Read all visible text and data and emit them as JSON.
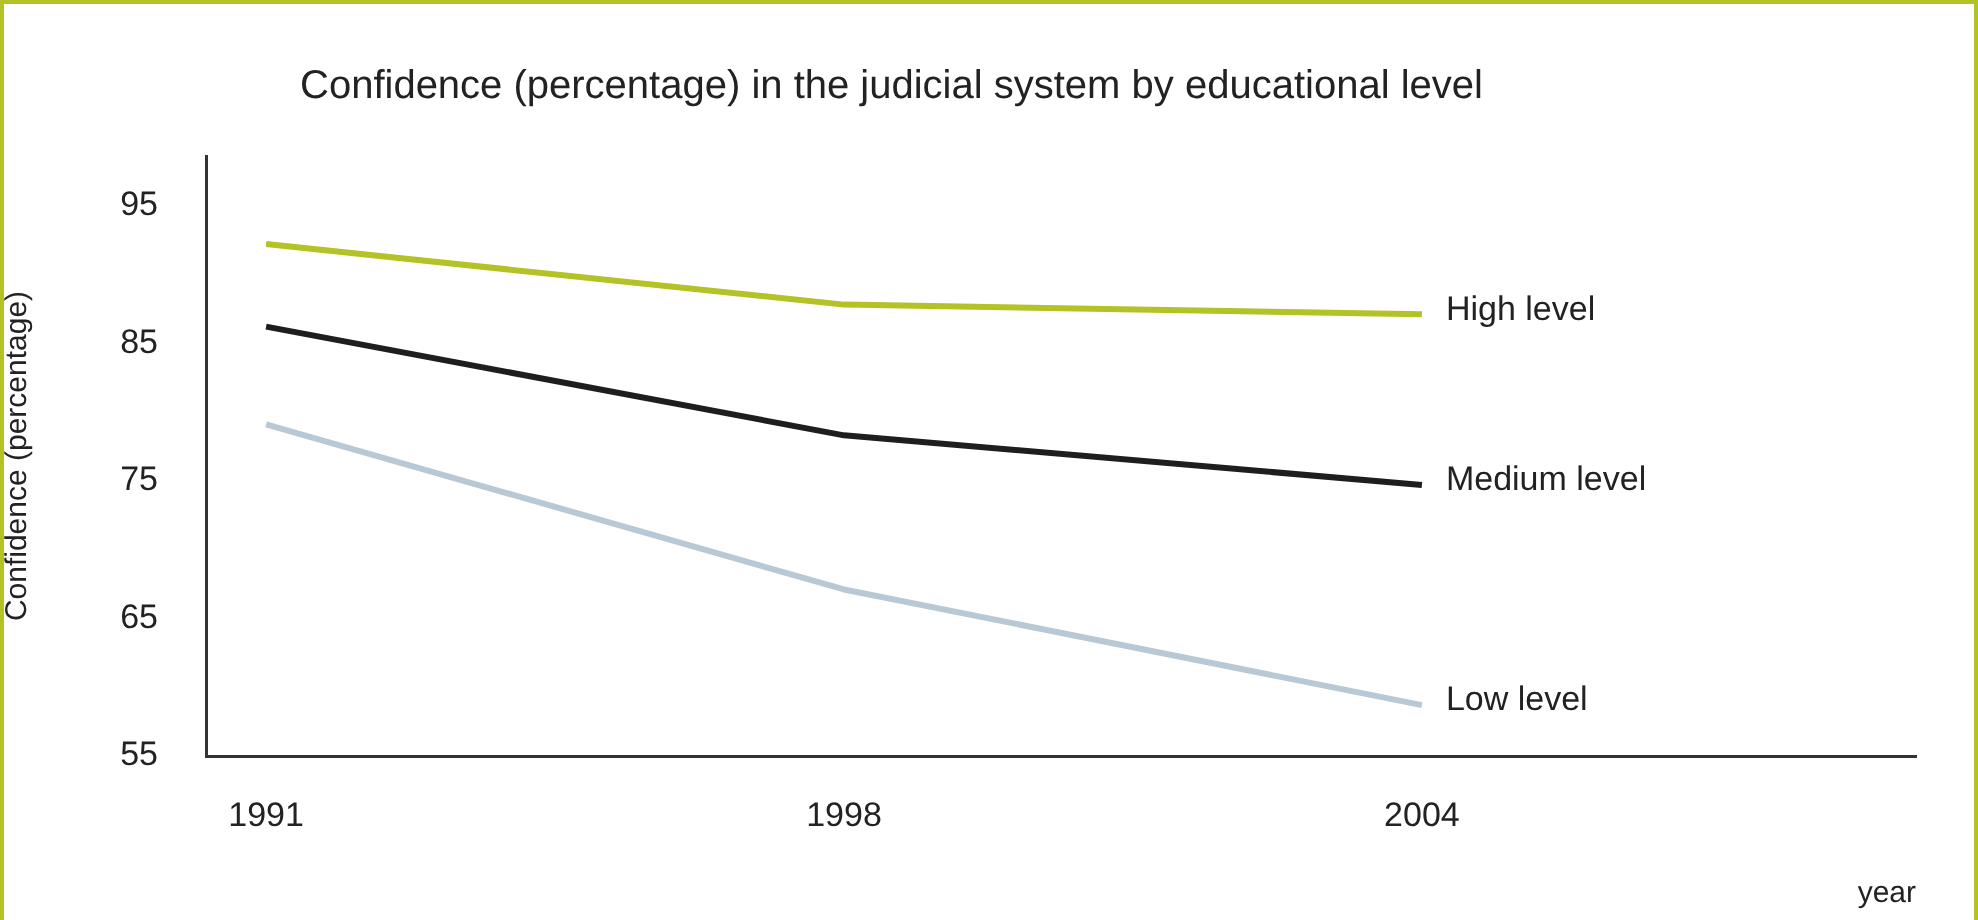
{
  "chart_data": {
    "type": "line",
    "title": "Confidence (percentage) in the judicial system by educational level",
    "xlabel": "year",
    "ylabel": "Confidence (percentage)",
    "categories": [
      "1991",
      "1998",
      "2004"
    ],
    "series": [
      {
        "name": "High level",
        "color": "#b3c225",
        "values": [
          92.2,
          87.8,
          87.1
        ]
      },
      {
        "name": "Medium level",
        "color": "#1e1e1e",
        "values": [
          86.2,
          78.3,
          74.7
        ]
      },
      {
        "name": "Low level",
        "color": "#b9c8d6",
        "values": [
          79.1,
          67.1,
          58.7
        ]
      }
    ],
    "ylim": [
      55,
      98.6
    ],
    "yticks": [
      55,
      65,
      75,
      85,
      95
    ],
    "grid": false,
    "legend": false,
    "marker": "none",
    "line_style": "solid"
  }
}
